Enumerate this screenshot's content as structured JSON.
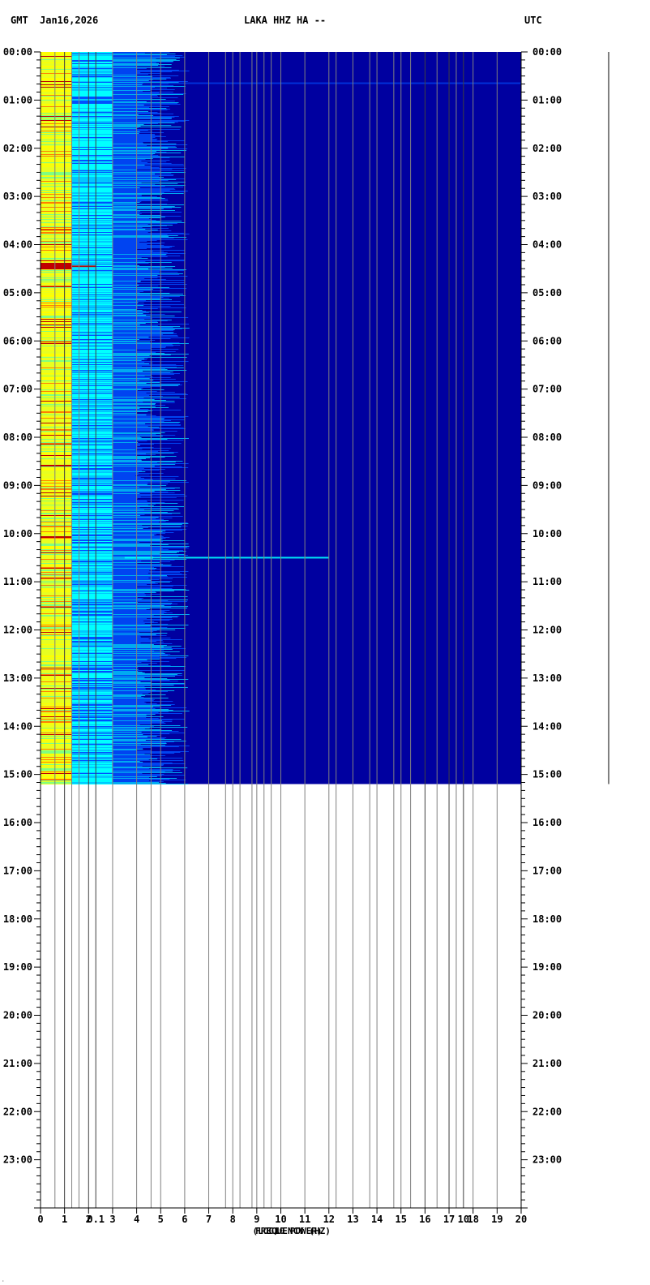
{
  "header": {
    "left_tz": "GMT",
    "date": "Jan16,2026",
    "station": "LAKA HHZ HA --",
    "right_tz": "UTC"
  },
  "colors": {
    "background": "#0000a0",
    "grid": "#808080",
    "text": "#000000",
    "palette": [
      "#0000a0",
      "#0050ff",
      "#00c8ff",
      "#00ffff",
      "#80ff80",
      "#e8ff20",
      "#ffff00",
      "#ff8000",
      "#c00000"
    ]
  },
  "chart_data": {
    "type": "heatmap",
    "title": "LAKA HHZ HA --",
    "xlabel": "FREQUENCY (HZ)",
    "xlabel_overlay": "(LOG10 POWER)",
    "x_range": [
      0,
      20
    ],
    "x_ticks": [
      "0",
      "1",
      "2",
      "3",
      "4",
      "5",
      "6",
      "7",
      "8",
      "9",
      "10",
      "11",
      "12",
      "13",
      "14",
      "15",
      "16",
      "17",
      "18",
      "19",
      "20"
    ],
    "extra_x_ticks": [
      {
        "label": "0.1",
        "value": 2.3
      },
      {
        "label": "10",
        "value": 17.6
      }
    ],
    "y_range_hours": [
      0,
      24
    ],
    "y_ticks": [
      "00:00",
      "01:00",
      "02:00",
      "03:00",
      "04:00",
      "05:00",
      "06:00",
      "07:00",
      "08:00",
      "09:00",
      "10:00",
      "11:00",
      "12:00",
      "13:00",
      "14:00",
      "15:00",
      "16:00",
      "17:00",
      "18:00",
      "19:00",
      "20:00",
      "21:00",
      "22:00",
      "23:00"
    ],
    "data_end_hour": 15.2,
    "vertical_lines_hz": [
      0.6,
      1.0,
      1.3,
      1.6,
      2.0,
      2.3,
      3.0,
      4.0,
      4.6,
      5.0,
      6.0,
      7.0,
      7.7,
      8.0,
      8.3,
      8.8,
      9.0,
      9.3,
      9.6,
      10.0,
      11.0,
      12.0,
      12.3,
      13.0,
      13.7,
      14.0,
      14.7,
      15.0,
      15.4,
      16.0,
      16.5,
      17.0,
      17.3,
      17.6,
      18.0,
      19.0
    ],
    "events": [
      {
        "time_hour": 0.65,
        "freq_start": 5,
        "freq_end": 20,
        "note": "weak line"
      },
      {
        "time_hour": 4.45,
        "freq_start": 0,
        "freq_end": 2.3,
        "note": "strong band"
      },
      {
        "time_hour": 10.5,
        "freq_start": 3.5,
        "freq_end": 12.0,
        "note": "event"
      }
    ],
    "grid": true,
    "legend": "none"
  }
}
